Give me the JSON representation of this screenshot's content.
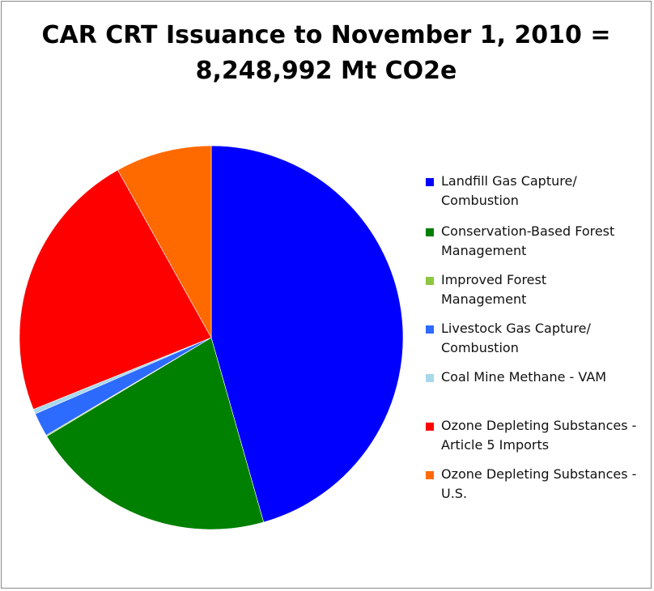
{
  "chart_data": {
    "type": "pie",
    "title_line1": "CAR CRT Issuance to November 1, 2010 =",
    "title_line2": "8,248,992 Mt CO2e",
    "legend_position": "right",
    "series": [
      {
        "name": "Landfill Gas Capture/ Combustion",
        "line1": "Landfill Gas Capture/",
        "line2": "Combustion",
        "value": 45.6,
        "color": "#0000ff"
      },
      {
        "name": "Conservation-Based Forest Management",
        "line1": "Conservation-Based Forest",
        "line2": "Management",
        "value": 20.8,
        "color": "#008000"
      },
      {
        "name": "Improved Forest Management",
        "line1": "Improved Forest",
        "line2": "Management",
        "value": 0.1,
        "color": "#8dc63f"
      },
      {
        "name": "Livestock Gas Capture/ Combustion",
        "line1": "Livestock Gas Capture/",
        "line2": "Combustion",
        "value": 2.0,
        "color": "#2d6bff"
      },
      {
        "name": "Coal Mine Methane - VAM",
        "line1": "Coal Mine Methane - VAM",
        "line2": "",
        "value": 0.4,
        "color": "#a8d8ea"
      },
      {
        "name": "Ozone Depleting Substances - Article 5 Imports",
        "line1": "Ozone Depleting Substances -",
        "line2": "Article 5 Imports",
        "value": 23.0,
        "color": "#ff0000"
      },
      {
        "name": "Ozone Depleting Substances - U.S.",
        "line1": "Ozone Depleting Substances -",
        "line2": "U.S.",
        "value": 8.1,
        "color": "#ff6a00"
      }
    ]
  }
}
